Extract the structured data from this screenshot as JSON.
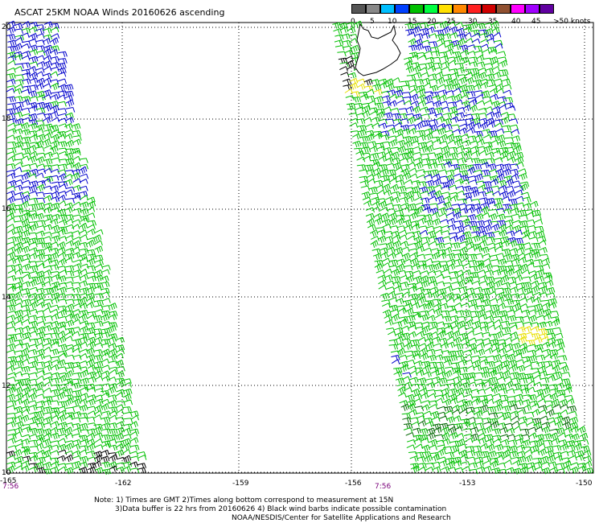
{
  "title": "ASCAT 25KM NOAA Winds 20160626 ascending",
  "legend": {
    "labels": [
      "0",
      "5",
      "10",
      "15",
      "20",
      "25",
      "30",
      "35",
      "40",
      "45"
    ],
    "unit_label": ">50 knots",
    "colors": [
      "#555555",
      "#888888",
      "#00bfff",
      "#0040ff",
      "#00c000",
      "#00ff40",
      "#ffe000",
      "#ff8800",
      "#ff2020",
      "#d00000",
      "#905030",
      "#ff00ff",
      "#a000ff",
      "#6000a0"
    ]
  },
  "map": {
    "lon_ticks": [
      "-165",
      "-162",
      "-159",
      "-156",
      "-153",
      "-150"
    ],
    "lat_ticks": [
      "20",
      "18",
      "16",
      "14",
      "12",
      "10"
    ],
    "time_labels": [
      "7:56",
      "7:56"
    ]
  },
  "notes": {
    "line1": "Note: 1) Times are GMT 2)Times along bottom correspond to measurement at 15N",
    "line2": "3)Data buffer is 22 hrs from 20160626 4) Black wind barbs indicate possible contamination",
    "line3": "NOAA/NESDIS/Center for Satellite Applications and Research"
  },
  "colors": {
    "barb_green": "#00c000",
    "barb_blue": "#0000cc",
    "barb_yellow": "#e8e000",
    "barb_black": "#000000",
    "coast": "#000000",
    "time_label": "#7a007a"
  }
}
